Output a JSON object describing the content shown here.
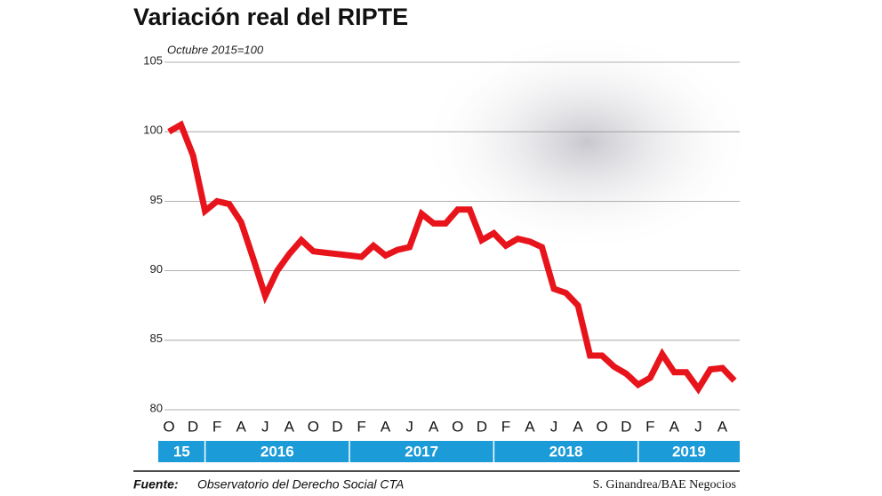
{
  "chart_data": {
    "type": "line",
    "title": "Variación real del RIPTE",
    "subtitle": "Octubre 2015=100",
    "categories": [
      "O",
      null,
      "D",
      null,
      "F",
      null,
      "A",
      null,
      "J",
      null,
      "A",
      null,
      "O",
      null,
      "D",
      null,
      "F",
      null,
      "A",
      null,
      "J",
      null,
      "A",
      null,
      "O",
      null,
      "D",
      null,
      "F",
      null,
      "A",
      null,
      "J",
      null,
      "A",
      null,
      "O",
      null,
      "D",
      null,
      "F",
      null,
      "A",
      null,
      "J",
      null,
      "A",
      null
    ],
    "year_labels": [
      "15",
      "2016",
      "2017",
      "2018",
      "2019"
    ],
    "series": [
      {
        "name": "RIPTE",
        "color": "#e8141c",
        "values": [
          100,
          100.5,
          98.3,
          94.3,
          95,
          94.8,
          93.5,
          90.9,
          88.2,
          90,
          91.2,
          92.2,
          91.4,
          91.3,
          91.2,
          91.1,
          91.0,
          91.8,
          91.1,
          91.5,
          91.7,
          94.1,
          93.4,
          93.4,
          94.4,
          94.4,
          92.2,
          92.7,
          91.8,
          92.3,
          92.1,
          91.7,
          88.7,
          88.4,
          87.5,
          83.9,
          83.9,
          83.1,
          82.6,
          81.8,
          82.3,
          84,
          82.7,
          82.7,
          81.5,
          82.9,
          83.0,
          82.1
        ]
      }
    ],
    "ylim": [
      80,
      105
    ],
    "yticks": [
      80,
      85,
      90,
      95,
      100,
      105
    ],
    "grid": true,
    "source_label": "Fuente:",
    "source": "Observatorio del Derecho Social CTA",
    "credit": "S. Ginandrea/BAE Negocios"
  }
}
